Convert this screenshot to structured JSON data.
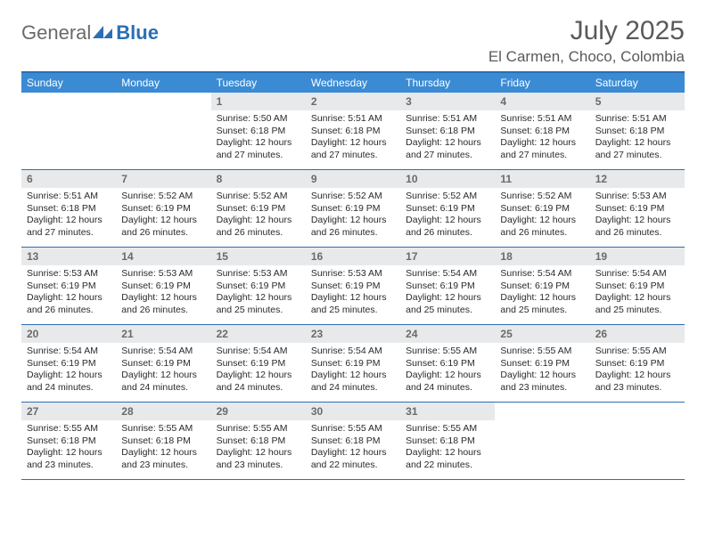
{
  "logo": {
    "word1": "General",
    "word2": "Blue"
  },
  "title": "July 2025",
  "location": "El Carmen, Choco, Colombia",
  "colors": {
    "accent": "#2b6fb3",
    "header_bg": "#3b8bd4",
    "daynum_bg": "#e8e9ea",
    "text_muted": "#6a6a6a",
    "text": "#2a2a2a"
  },
  "day_names": [
    "Sunday",
    "Monday",
    "Tuesday",
    "Wednesday",
    "Thursday",
    "Friday",
    "Saturday"
  ],
  "weeks": [
    [
      {
        "n": "",
        "sr": "",
        "ss": "",
        "dl": ""
      },
      {
        "n": "",
        "sr": "",
        "ss": "",
        "dl": ""
      },
      {
        "n": "1",
        "sr": "Sunrise: 5:50 AM",
        "ss": "Sunset: 6:18 PM",
        "dl": "Daylight: 12 hours and 27 minutes."
      },
      {
        "n": "2",
        "sr": "Sunrise: 5:51 AM",
        "ss": "Sunset: 6:18 PM",
        "dl": "Daylight: 12 hours and 27 minutes."
      },
      {
        "n": "3",
        "sr": "Sunrise: 5:51 AM",
        "ss": "Sunset: 6:18 PM",
        "dl": "Daylight: 12 hours and 27 minutes."
      },
      {
        "n": "4",
        "sr": "Sunrise: 5:51 AM",
        "ss": "Sunset: 6:18 PM",
        "dl": "Daylight: 12 hours and 27 minutes."
      },
      {
        "n": "5",
        "sr": "Sunrise: 5:51 AM",
        "ss": "Sunset: 6:18 PM",
        "dl": "Daylight: 12 hours and 27 minutes."
      }
    ],
    [
      {
        "n": "6",
        "sr": "Sunrise: 5:51 AM",
        "ss": "Sunset: 6:18 PM",
        "dl": "Daylight: 12 hours and 27 minutes."
      },
      {
        "n": "7",
        "sr": "Sunrise: 5:52 AM",
        "ss": "Sunset: 6:19 PM",
        "dl": "Daylight: 12 hours and 26 minutes."
      },
      {
        "n": "8",
        "sr": "Sunrise: 5:52 AM",
        "ss": "Sunset: 6:19 PM",
        "dl": "Daylight: 12 hours and 26 minutes."
      },
      {
        "n": "9",
        "sr": "Sunrise: 5:52 AM",
        "ss": "Sunset: 6:19 PM",
        "dl": "Daylight: 12 hours and 26 minutes."
      },
      {
        "n": "10",
        "sr": "Sunrise: 5:52 AM",
        "ss": "Sunset: 6:19 PM",
        "dl": "Daylight: 12 hours and 26 minutes."
      },
      {
        "n": "11",
        "sr": "Sunrise: 5:52 AM",
        "ss": "Sunset: 6:19 PM",
        "dl": "Daylight: 12 hours and 26 minutes."
      },
      {
        "n": "12",
        "sr": "Sunrise: 5:53 AM",
        "ss": "Sunset: 6:19 PM",
        "dl": "Daylight: 12 hours and 26 minutes."
      }
    ],
    [
      {
        "n": "13",
        "sr": "Sunrise: 5:53 AM",
        "ss": "Sunset: 6:19 PM",
        "dl": "Daylight: 12 hours and 26 minutes."
      },
      {
        "n": "14",
        "sr": "Sunrise: 5:53 AM",
        "ss": "Sunset: 6:19 PM",
        "dl": "Daylight: 12 hours and 26 minutes."
      },
      {
        "n": "15",
        "sr": "Sunrise: 5:53 AM",
        "ss": "Sunset: 6:19 PM",
        "dl": "Daylight: 12 hours and 25 minutes."
      },
      {
        "n": "16",
        "sr": "Sunrise: 5:53 AM",
        "ss": "Sunset: 6:19 PM",
        "dl": "Daylight: 12 hours and 25 minutes."
      },
      {
        "n": "17",
        "sr": "Sunrise: 5:54 AM",
        "ss": "Sunset: 6:19 PM",
        "dl": "Daylight: 12 hours and 25 minutes."
      },
      {
        "n": "18",
        "sr": "Sunrise: 5:54 AM",
        "ss": "Sunset: 6:19 PM",
        "dl": "Daylight: 12 hours and 25 minutes."
      },
      {
        "n": "19",
        "sr": "Sunrise: 5:54 AM",
        "ss": "Sunset: 6:19 PM",
        "dl": "Daylight: 12 hours and 25 minutes."
      }
    ],
    [
      {
        "n": "20",
        "sr": "Sunrise: 5:54 AM",
        "ss": "Sunset: 6:19 PM",
        "dl": "Daylight: 12 hours and 24 minutes."
      },
      {
        "n": "21",
        "sr": "Sunrise: 5:54 AM",
        "ss": "Sunset: 6:19 PM",
        "dl": "Daylight: 12 hours and 24 minutes."
      },
      {
        "n": "22",
        "sr": "Sunrise: 5:54 AM",
        "ss": "Sunset: 6:19 PM",
        "dl": "Daylight: 12 hours and 24 minutes."
      },
      {
        "n": "23",
        "sr": "Sunrise: 5:54 AM",
        "ss": "Sunset: 6:19 PM",
        "dl": "Daylight: 12 hours and 24 minutes."
      },
      {
        "n": "24",
        "sr": "Sunrise: 5:55 AM",
        "ss": "Sunset: 6:19 PM",
        "dl": "Daylight: 12 hours and 24 minutes."
      },
      {
        "n": "25",
        "sr": "Sunrise: 5:55 AM",
        "ss": "Sunset: 6:19 PM",
        "dl": "Daylight: 12 hours and 23 minutes."
      },
      {
        "n": "26",
        "sr": "Sunrise: 5:55 AM",
        "ss": "Sunset: 6:19 PM",
        "dl": "Daylight: 12 hours and 23 minutes."
      }
    ],
    [
      {
        "n": "27",
        "sr": "Sunrise: 5:55 AM",
        "ss": "Sunset: 6:18 PM",
        "dl": "Daylight: 12 hours and 23 minutes."
      },
      {
        "n": "28",
        "sr": "Sunrise: 5:55 AM",
        "ss": "Sunset: 6:18 PM",
        "dl": "Daylight: 12 hours and 23 minutes."
      },
      {
        "n": "29",
        "sr": "Sunrise: 5:55 AM",
        "ss": "Sunset: 6:18 PM",
        "dl": "Daylight: 12 hours and 23 minutes."
      },
      {
        "n": "30",
        "sr": "Sunrise: 5:55 AM",
        "ss": "Sunset: 6:18 PM",
        "dl": "Daylight: 12 hours and 22 minutes."
      },
      {
        "n": "31",
        "sr": "Sunrise: 5:55 AM",
        "ss": "Sunset: 6:18 PM",
        "dl": "Daylight: 12 hours and 22 minutes."
      },
      {
        "n": "",
        "sr": "",
        "ss": "",
        "dl": ""
      },
      {
        "n": "",
        "sr": "",
        "ss": "",
        "dl": ""
      }
    ]
  ]
}
